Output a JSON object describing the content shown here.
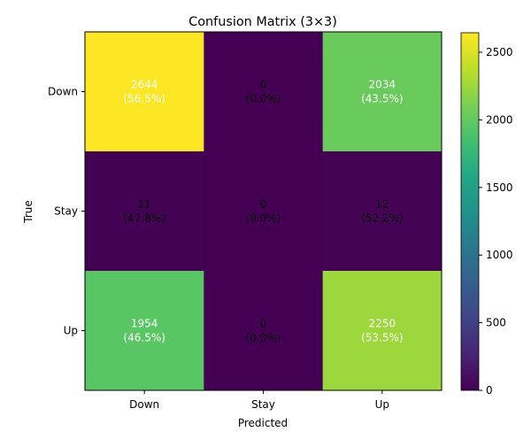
{
  "chart_data": {
    "type": "heatmap",
    "title": "Confusion Matrix (3×3)",
    "xlabel": "Predicted",
    "ylabel": "True",
    "x_categories": [
      "Down",
      "Stay",
      "Up"
    ],
    "y_categories": [
      "Down",
      "Stay",
      "Up"
    ],
    "values": [
      [
        2644,
        0,
        2034
      ],
      [
        11,
        0,
        12
      ],
      [
        1954,
        0,
        2250
      ]
    ],
    "cell_labels": [
      [
        "2644\n(56.5%)",
        "0\n(0.0%)",
        "2034\n(43.5%)"
      ],
      [
        "11\n(47.8%)",
        "0\n(0.0%)",
        "12\n(52.2%)"
      ],
      [
        "1954\n(46.5%)",
        "0\n(0.0%)",
        "2250\n(53.5%)"
      ]
    ],
    "colormap": "viridis",
    "color_range": [
      0,
      2644
    ],
    "colorbar_ticks": [
      0,
      500,
      1000,
      1500,
      2000,
      2500
    ]
  }
}
